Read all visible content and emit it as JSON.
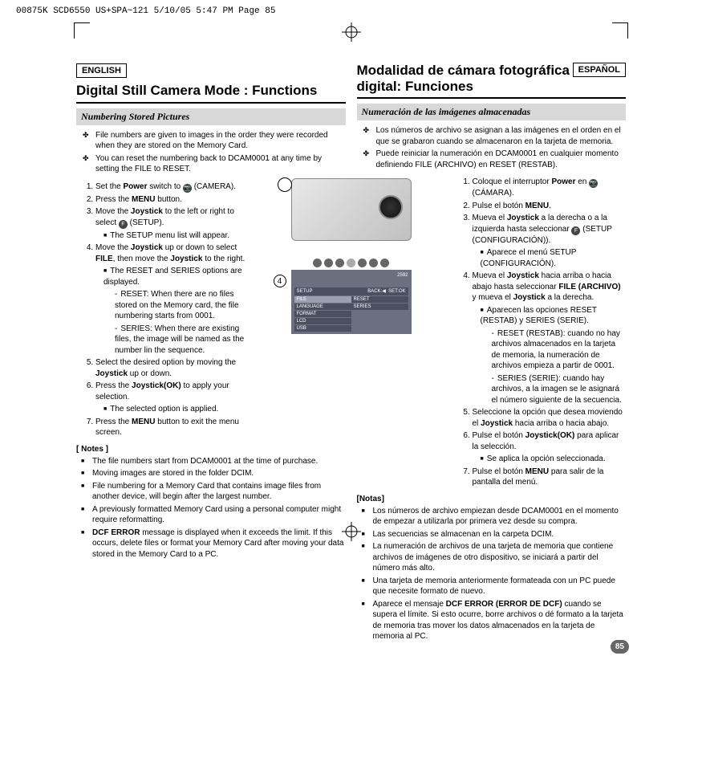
{
  "header": "00875K SCD6550 US+SPA~121  5/10/05 5:47 PM  Page 85",
  "pageNumber": "85",
  "figLabel1": "1",
  "figLabel4": "4",
  "lcd": {
    "topright": "2592",
    "bar_left": "SETUP",
    "bar_back": "BACK:◀",
    "bar_set": "SET:OK",
    "left_items": [
      "FILE",
      "LANGUAGE",
      "FORMAT",
      "LCD",
      "USB"
    ],
    "right_items": [
      "RESET",
      "SERIES"
    ]
  },
  "en": {
    "lang": "ENGLISH",
    "title": "Digital Still Camera Mode : Functions",
    "subhead": "Numbering Stored Pictures",
    "intro": [
      "File numbers are given to images in the order they were recorded when they are stored on the Memory Card.",
      "You can reset the numbering back to DCAM0001 at any time by setting the FILE to RESET."
    ],
    "steps": [
      "Set the <b>Power</b> switch to <span class='icon-circ'>📷</span> (CAMERA).",
      "Press the <b>MENU</b> button.",
      "Move the <b>Joystick</b> to the left or right to select <span class='icon-circ'>F</span> (SETUP).<ul><li>The SETUP menu list will appear.</li></ul>",
      "Move the <b>Joystick</b> up or down to select <b>FILE</b>, then move the <b>Joystick</b> to the right.<ul><li>The RESET and SERIES options are displayed.<ul><li>RESET: When there are no files stored on the Memory card, the file numbering starts from 0001.</li><li>SERIES: When there are existing files, the image will be named as the number lin the sequence.</li></ul></li></ul>",
      "Select the desired option by moving the <b>Joystick</b> up or down.",
      "Press the <b>Joystick(OK)</b> to apply your selection.<ul><li>The selected option is applied.</li></ul>",
      "Press the <b>MENU</b> button to exit the menu screen."
    ],
    "notesHead": "[ Notes ]",
    "notes": [
      "The file numbers start from DCAM0001 at the time of purchase.",
      "Moving images are stored in the folder DCIM.",
      "File numbering for a Memory Card that contains image files from another device, will begin after the largest number.",
      "A previously formatted Memory Card using a personal computer might require reformatting.",
      "<b>DCF ERROR</b> message is displayed when it exceeds the limit. If this occurs, delete files or format your Memory Card after moving your data stored in the Memory Card to a PC."
    ]
  },
  "es": {
    "lang": "ESPAÑOL",
    "title": "Modalidad de cámara fotográfica digital: Funciones",
    "subhead": "Numeración de las imágenes almacenadas",
    "intro": [
      "Los números de archivo se asignan a las imágenes en el orden en el que se grabaron cuando se almacenaron en la tarjeta de memoria.",
      "Puede reiniciar la numeración en DCAM0001 en cualquier momento definiendo FILE (ARCHIVO) en RESET (RESTAB)."
    ],
    "steps": [
      "Coloque el interruptor <b>Power</b> en <span class='icon-circ'>📷</span> (CÁMARA).",
      "Pulse el botón <b>MENU</b>.",
      "Mueva el <b>Joystick</b> a la derecha o a la izquierda hasta seleccionar <span class='icon-circ'>F</span> (SETUP (CONFIGURACIÓN)).<ul><li>Aparece el menú SETUP (CONFIGURACIÓN).</li></ul>",
      "Mueva el <b>Joystick</b> hacia arriba o hacia abajo hasta seleccionar <b>FILE (ARCHIVO)</b> y mueva el <b>Joystick</b> a la derecha.<ul><li>Aparecen las opciones RESET (RESTAB) y SERIES (SERIE).<ul><li>RESET (RESTAB): cuando no hay archivos almacenados en la tarjeta de memoria, la numeración de archivos empieza a partir de 0001.</li><li>SERIES (SERIE): cuando hay archivos, a la imagen se le asignará el número siguiente de la secuencia.</li></ul></li></ul>",
      "Seleccione la opción que desea moviendo el <b>Joystick</b> hacia arriba o hacia abajo.",
      "Pulse el botón <b>Joystick(OK)</b> para aplicar la selección.<ul><li>Se aplica la opción seleccionada.</li></ul>",
      "Pulse el botón <b>MENU</b> para salir de la pantalla del menú."
    ],
    "notesHead": "[Notas]",
    "notes": [
      "Los números de archivo empiezan desde DCAM0001 en el momento de empezar a utilizarla por primera vez desde su compra.",
      "Las secuencias se almacenan en la carpeta DCIM.",
      "La numeración de archivos de una tarjeta de memoria que contiene archivos de imágenes de otro dispositivo, se iniciará a partir del número más alto.",
      "Una tarjeta de memoria anteriormente formateada con un PC puede que necesite formato de nuevo.",
      "Aparece el mensaje <b>DCF ERROR (ERROR DE DCF)</b> cuando se supera el límite. Si esto ocurre, borre archivos o dé formato a la tarjeta de memoria tras mover los datos almacenados en la tarjeta de memoria al PC."
    ]
  }
}
